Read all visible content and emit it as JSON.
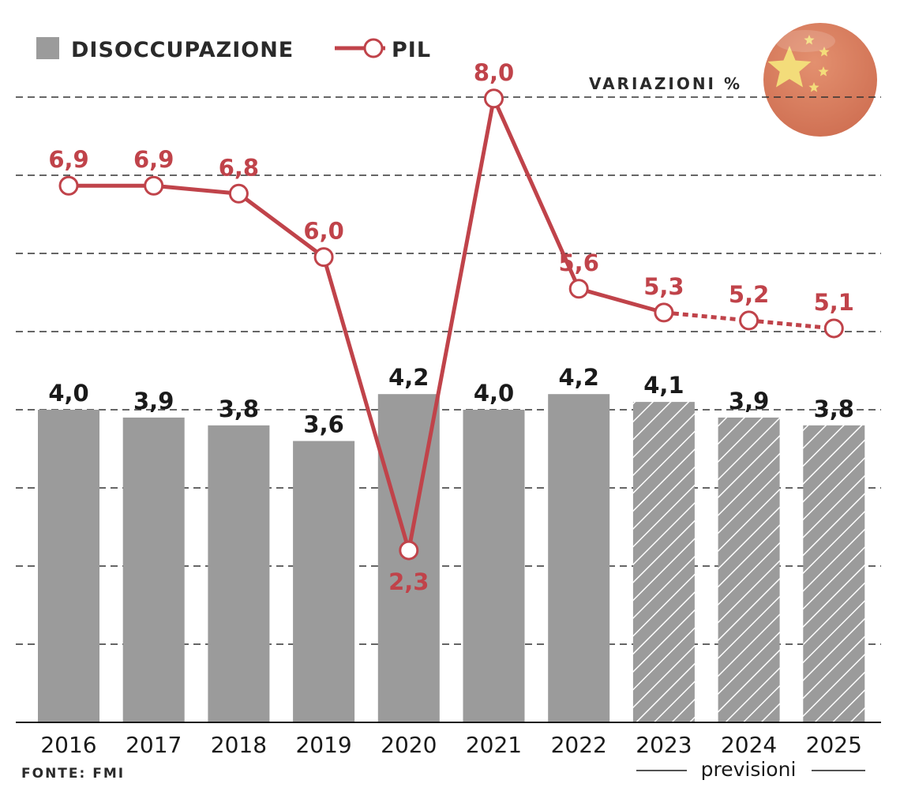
{
  "legend": {
    "bars_label": "DISOCCUPAZIONE",
    "line_label": "PIL"
  },
  "unit_label": "VARIAZIONI %",
  "source": "FONTE: FMI",
  "forecast_label": "previsioni",
  "flag_icon": "china-flag-icon",
  "colors": {
    "bar": "#9b9b9b",
    "line": "#c0434a",
    "grid": "#333333",
    "flag_bg": "#d97a5c",
    "flag_star": "#f3dc7a"
  },
  "chart_data": {
    "type": "bar",
    "categories": [
      "2016",
      "2017",
      "2018",
      "2019",
      "2020",
      "2021",
      "2022",
      "2023",
      "2024",
      "2025"
    ],
    "forecast_from_index": 7,
    "series": [
      {
        "name": "DISOCCUPAZIONE",
        "type": "bar",
        "values": [
          4.0,
          3.9,
          3.8,
          3.6,
          4.2,
          4.0,
          4.2,
          4.1,
          3.9,
          3.8
        ],
        "labels": [
          "4,0",
          "3,9",
          "3,8",
          "3,6",
          "4,2",
          "4,0",
          "4,2",
          "4,1",
          "3,9",
          "3,8"
        ]
      },
      {
        "name": "PIL",
        "type": "line",
        "values": [
          6.9,
          6.9,
          6.8,
          6.0,
          2.3,
          8.0,
          5.6,
          5.3,
          5.2,
          5.1
        ],
        "labels": [
          "6,9",
          "6,9",
          "6,8",
          "6,0",
          "2,3",
          "8,0",
          "5,6",
          "5,3",
          "5,2",
          "5,1"
        ]
      }
    ],
    "ylim": [
      0,
      8
    ],
    "grid": true,
    "legend_position": "top-left"
  }
}
